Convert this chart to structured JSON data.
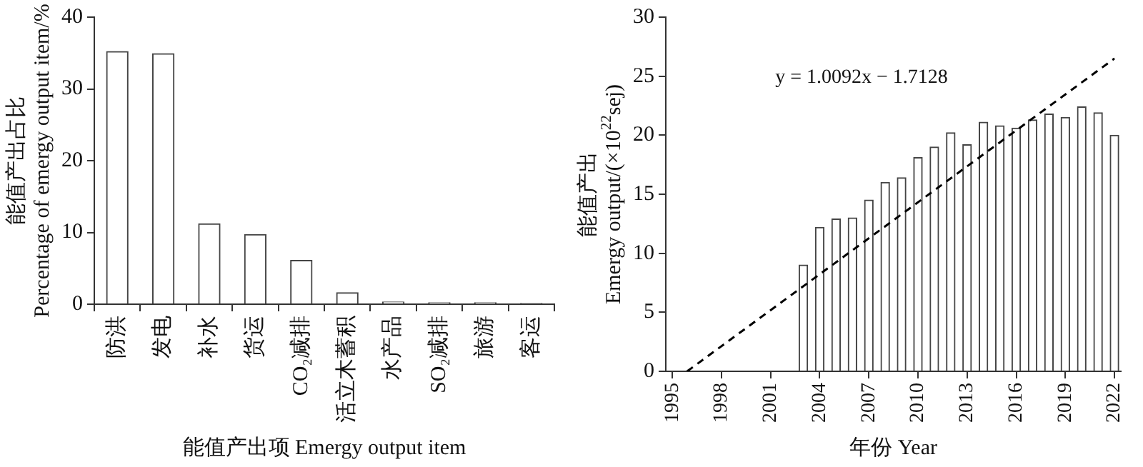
{
  "chart_data": [
    {
      "type": "bar",
      "xlabel": "能值产出项 Emergy output item",
      "ylabel": "能值产出占比\nPercentage of emergy output item/%",
      "categories": [
        "防洪",
        "发电",
        "补水",
        "货运",
        "CO₂减排",
        "活立木蓄积",
        "水产品",
        "SO₂减排",
        "旅游",
        "客运"
      ],
      "values": [
        35.2,
        34.9,
        11.2,
        9.7,
        6.1,
        1.6,
        0.3,
        0.2,
        0.2,
        0.1
      ],
      "color": "#ffffff",
      "ylim": [
        0,
        40
      ],
      "yticks": [
        0,
        10,
        20,
        30,
        40
      ],
      "grid": false
    },
    {
      "type": "bar",
      "xlabel": "年份 Year",
      "ylabel": "能值产出\nEmergy output/(×10$^{22}$sej)",
      "x": [
        1995,
        1996,
        1997,
        1998,
        1999,
        2000,
        2001,
        2002,
        2003,
        2004,
        2005,
        2006,
        2007,
        2008,
        2009,
        2010,
        2011,
        2012,
        2013,
        2014,
        2015,
        2016,
        2017,
        2018,
        2019,
        2020,
        2021,
        2022
      ],
      "xlim": [
        1994.6,
        2022.4
      ],
      "xticks": [
        1995,
        1998,
        2001,
        2004,
        2007,
        2010,
        2013,
        2016,
        2019,
        2022
      ],
      "ylim": [
        0,
        30
      ],
      "yticks": [
        0,
        5,
        10,
        15,
        20,
        25,
        30
      ],
      "grid": false,
      "series": [
        {
          "type": "bar",
          "color": "#ffffff",
          "values": [
            0,
            0,
            0,
            0,
            0,
            0,
            0,
            0,
            9.0,
            12.2,
            12.9,
            13.0,
            14.5,
            16.0,
            16.4,
            18.1,
            19.0,
            20.2,
            19.2,
            21.1,
            20.8,
            20.6,
            21.3,
            21.8,
            21.5,
            22.4,
            21.9,
            20.0
          ]
        },
        {
          "type": "line",
          "x": [
            1995.9,
            2022
          ],
          "values": [
            0,
            26.5
          ],
          "color": "#000000",
          "line_style": "dashed",
          "marker": "none"
        }
      ],
      "annotations": [
        "y = 1.0092x − 1.7128"
      ]
    }
  ]
}
